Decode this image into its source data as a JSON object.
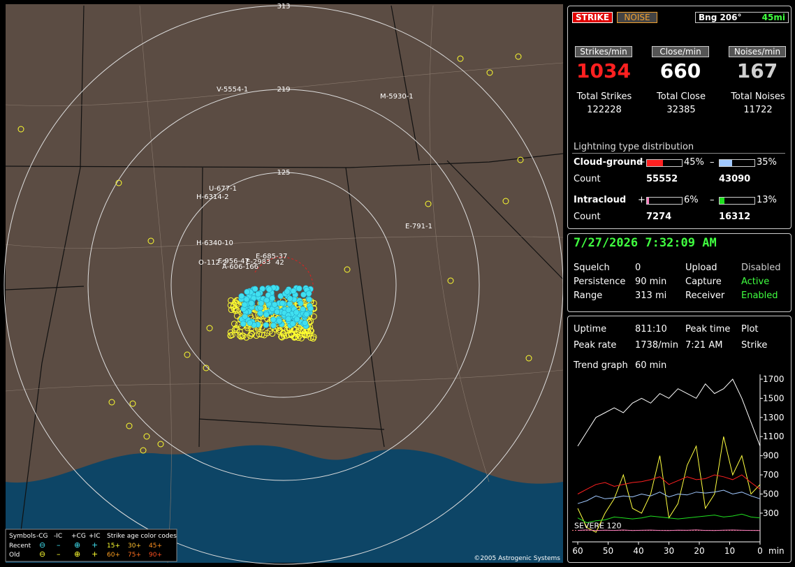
{
  "map": {
    "range_labels": [
      "313",
      "219",
      "125"
    ],
    "storm_labels": [
      "V-5554-1",
      "M-5930-1",
      "U-677-1",
      "H-6314-2",
      "H-6340-10",
      "E-791-1",
      "E-685-37",
      "F-956-47",
      "O-112-2",
      "A-606-166",
      "E-2983",
      "42"
    ],
    "legend": {
      "title": "Symbols",
      "columns": [
        "-CG",
        "-IC",
        "+CG",
        "+IC"
      ],
      "age_title": "Strike age color codes",
      "rows": [
        {
          "name": "Recent",
          "symbols": [
            "⊖",
            "–",
            "⊕",
            "+"
          ],
          "ages": [
            "15+",
            "30+",
            "45+"
          ]
        },
        {
          "name": "Old",
          "symbols": [
            "⊖",
            "–",
            "⊕",
            "+"
          ],
          "ages": [
            "60+",
            "75+",
            "90+"
          ]
        }
      ]
    },
    "copyright": "©2005 Astrogenic Systems"
  },
  "status": {
    "strike_button": "STRIKE",
    "noise_button": "NOISE",
    "bearing": "Bng 206°",
    "distance": "45mi"
  },
  "rates": [
    {
      "header": "Strikes/min",
      "value": 1034,
      "total_label": "Total Strikes",
      "total": 122228
    },
    {
      "header": "Close/min",
      "value": 660,
      "total_label": "Total Close",
      "total": 32385
    },
    {
      "header": "Noises/min",
      "value": 167,
      "total_label": "Total Noises",
      "total": 11722
    }
  ],
  "distribution": {
    "title": "Lightning type distribution",
    "plus_sign": "+",
    "minus_sign": "–",
    "count_label": "Count",
    "rows": [
      {
        "name": "Cloud-ground",
        "plus": {
          "value": 45,
          "label": "45%"
        },
        "minus": {
          "value": 35,
          "label": "35%"
        },
        "plus_count": 55552,
        "minus_count": 43090
      },
      {
        "name": "Intracloud",
        "plus": {
          "value": 6,
          "label": "6%"
        },
        "minus": {
          "value": 13,
          "label": "13%"
        },
        "plus_count": 7274,
        "minus_count": 16312
      }
    ]
  },
  "clock": "7/27/2026 7:32:09 AM",
  "settings": [
    [
      "Squelch",
      "0",
      "Upload",
      "Disabled"
    ],
    [
      "Persistence",
      "90 min",
      "Capture",
      "Active"
    ],
    [
      "Range",
      "313 mi",
      "Receiver",
      "Enabled"
    ]
  ],
  "info": [
    [
      "Uptime",
      "811:10",
      "Peak time",
      "Plot"
    ],
    [
      "Peak rate",
      "1738/min",
      "7:21 AM",
      "Strike"
    ]
  ],
  "trend_label": "Trend graph",
  "trend_window": "60 min",
  "trend": {
    "x": [
      60,
      57,
      54,
      51,
      48,
      45,
      42,
      39,
      36,
      33,
      30,
      27,
      24,
      21,
      18,
      15,
      12,
      9,
      6,
      3,
      0
    ],
    "xlim": [
      60,
      0
    ],
    "ylim": [
      0,
      1750
    ],
    "yticks": [
      1700,
      1500,
      1300,
      1100,
      900,
      700,
      500,
      300
    ],
    "xticks": [
      60,
      50,
      40,
      30,
      20,
      10,
      0
    ],
    "x_unit": "min",
    "severe": {
      "value": 120,
      "label": "SEVERE 120"
    },
    "series": [
      {
        "color": "#ffffff",
        "values": [
          1000,
          1150,
          1300,
          1350,
          1400,
          1350,
          1450,
          1500,
          1450,
          1550,
          1500,
          1600,
          1550,
          1500,
          1650,
          1550,
          1600,
          1700,
          1500,
          1250,
          1000
        ]
      },
      {
        "color": "#ffff40",
        "values": [
          350,
          150,
          100,
          300,
          450,
          700,
          350,
          300,
          500,
          900,
          250,
          400,
          800,
          1000,
          350,
          500,
          1100,
          700,
          900,
          500,
          600
        ]
      },
      {
        "color": "#ff2020",
        "values": [
          500,
          550,
          600,
          620,
          580,
          600,
          620,
          630,
          650,
          680,
          600,
          640,
          680,
          650,
          660,
          700,
          680,
          650,
          700,
          620,
          550
        ]
      },
      {
        "color": "#a0c8ff",
        "values": [
          400,
          430,
          480,
          450,
          460,
          480,
          470,
          500,
          480,
          520,
          470,
          500,
          490,
          520,
          510,
          520,
          540,
          500,
          520,
          480,
          450
        ]
      },
      {
        "color": "#20e020",
        "values": [
          250,
          200,
          220,
          230,
          260,
          250,
          240,
          250,
          270,
          260,
          250,
          240,
          250,
          260,
          270,
          280,
          260,
          270,
          290,
          260,
          250
        ]
      },
      {
        "color": "#ff80c0",
        "values": [
          120,
          125,
          118,
          122,
          120,
          124,
          119,
          121,
          123,
          120,
          118,
          122,
          121,
          125,
          120,
          119,
          122,
          124,
          121,
          120,
          118
        ]
      }
    ]
  }
}
